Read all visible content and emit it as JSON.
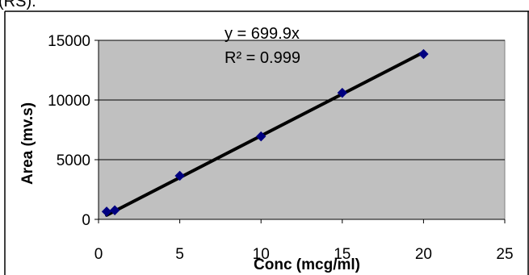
{
  "header_fragment": "(RS).",
  "chart_data": {
    "type": "scatter",
    "title": "",
    "xlabel": "Conc (mcg/ml)",
    "ylabel": "Area (mv.s)",
    "xlim": [
      0,
      25
    ],
    "ylim": [
      0,
      15000
    ],
    "xticks": [
      0,
      5,
      10,
      15,
      20,
      25
    ],
    "yticks": [
      0,
      5000,
      10000,
      15000
    ],
    "xtick_labels": [
      "0",
      "5",
      "10",
      "15",
      "20",
      "25"
    ],
    "ytick_labels": [
      "0",
      "5000",
      "10000",
      "15000"
    ],
    "grid": "horizontal",
    "series": [
      {
        "x": [
          0.5,
          1,
          5,
          10,
          15,
          20
        ],
        "y": [
          650,
          760,
          3650,
          6950,
          10600,
          13850
        ],
        "color": "#000080"
      }
    ],
    "trendline": {
      "slope": 699.9,
      "intercept": 0,
      "color": "#000000"
    },
    "annotations": [
      "y = 699.9x",
      "R² = 0.999"
    ],
    "colors": {
      "plot_background": "#c0c0c0",
      "marker": "#000080",
      "gridline": "#000000"
    }
  }
}
